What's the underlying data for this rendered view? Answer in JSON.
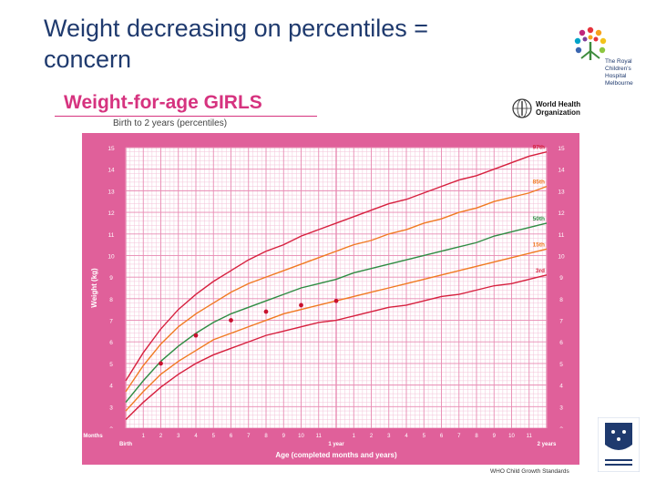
{
  "slide": {
    "title_line1": "Weight decreasing on percentiles =",
    "title_line2": "concern"
  },
  "logo": {
    "name_lines": [
      "The Royal",
      "Children's",
      "Hospital",
      "Melbourne"
    ]
  },
  "who": {
    "org_line1": "World Health",
    "org_line2": "Organization",
    "footer": "WHO Child Growth Standards"
  },
  "colors": {
    "chart_background": "#e0609a",
    "grid": "#ffffff",
    "p97": "#d6203e",
    "p85": "#f07a22",
    "p50": "#2f8c43",
    "p15": "#f07a22",
    "p3": "#d6203e",
    "patient_point": "#c8102e",
    "title_pink": "#d6337f",
    "slide_title": "#1f3a6e"
  },
  "chart_data": {
    "type": "line",
    "title": "Weight-for-age GIRLS",
    "subtitle": "Birth to 2 years (percentiles)",
    "xlabel": "Age (completed months and years)",
    "ylabel": "Weight (kg)",
    "xlim": [
      0,
      24
    ],
    "ylim": [
      2,
      15
    ],
    "y_ticks": [
      2,
      3,
      4,
      5,
      6,
      7,
      8,
      9,
      10,
      11,
      12,
      13,
      14,
      15
    ],
    "months_row_label": "Months",
    "x_tick_labels": [
      "Birth",
      "1",
      "2",
      "3",
      "4",
      "5",
      "6",
      "7",
      "8",
      "9",
      "10",
      "11",
      "1 year",
      "1",
      "2",
      "3",
      "4",
      "5",
      "6",
      "7",
      "8",
      "9",
      "10",
      "11",
      "2 years"
    ],
    "x": [
      0,
      1,
      2,
      3,
      4,
      5,
      6,
      7,
      8,
      9,
      10,
      11,
      12,
      13,
      14,
      15,
      16,
      17,
      18,
      19,
      20,
      21,
      22,
      23,
      24
    ],
    "series": [
      {
        "name": "97th",
        "values": [
          4.2,
          5.5,
          6.6,
          7.5,
          8.2,
          8.8,
          9.3,
          9.8,
          10.2,
          10.5,
          10.9,
          11.2,
          11.5,
          11.8,
          12.1,
          12.4,
          12.6,
          12.9,
          13.2,
          13.5,
          13.7,
          14.0,
          14.3,
          14.6,
          14.8
        ]
      },
      {
        "name": "85th",
        "values": [
          3.7,
          4.9,
          5.9,
          6.7,
          7.3,
          7.8,
          8.3,
          8.7,
          9.0,
          9.3,
          9.6,
          9.9,
          10.2,
          10.5,
          10.7,
          11.0,
          11.2,
          11.5,
          11.7,
          12.0,
          12.2,
          12.5,
          12.7,
          12.9,
          13.2
        ]
      },
      {
        "name": "50th",
        "values": [
          3.2,
          4.2,
          5.1,
          5.8,
          6.4,
          6.9,
          7.3,
          7.6,
          7.9,
          8.2,
          8.5,
          8.7,
          8.9,
          9.2,
          9.4,
          9.6,
          9.8,
          10.0,
          10.2,
          10.4,
          10.6,
          10.9,
          11.1,
          11.3,
          11.5
        ]
      },
      {
        "name": "15th",
        "values": [
          2.8,
          3.7,
          4.5,
          5.1,
          5.6,
          6.1,
          6.4,
          6.7,
          7.0,
          7.3,
          7.5,
          7.7,
          7.9,
          8.1,
          8.3,
          8.5,
          8.7,
          8.9,
          9.1,
          9.3,
          9.5,
          9.7,
          9.9,
          10.1,
          10.3
        ]
      },
      {
        "name": "3rd",
        "values": [
          2.4,
          3.2,
          3.9,
          4.5,
          5.0,
          5.4,
          5.7,
          6.0,
          6.3,
          6.5,
          6.7,
          6.9,
          7.0,
          7.2,
          7.4,
          7.6,
          7.7,
          7.9,
          8.1,
          8.2,
          8.4,
          8.6,
          8.7,
          8.9,
          9.1
        ]
      }
    ],
    "patient_points": [
      {
        "x": 2,
        "y": 5.0
      },
      {
        "x": 4,
        "y": 6.3
      },
      {
        "x": 6,
        "y": 7.0
      },
      {
        "x": 8,
        "y": 7.4
      },
      {
        "x": 10,
        "y": 7.7
      },
      {
        "x": 12,
        "y": 7.9
      }
    ],
    "legend": "right-side labels",
    "grid": true
  }
}
